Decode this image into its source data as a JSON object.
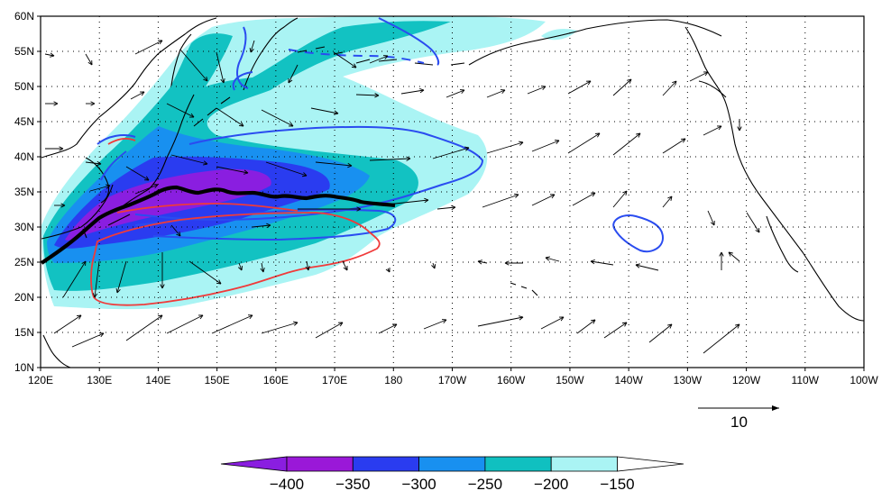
{
  "map": {
    "lat_labels": [
      "60N",
      "55N",
      "50N",
      "45N",
      "40N",
      "35N",
      "30N",
      "25N",
      "20N",
      "15N",
      "10N"
    ],
    "lon_labels": [
      "120E",
      "130E",
      "140E",
      "150E",
      "160E",
      "170E",
      "180",
      "170W",
      "160W",
      "150W",
      "140W",
      "130W",
      "120W",
      "110W",
      "100W"
    ],
    "colors": {
      "land_outline": "#000000",
      "grid": "#000000",
      "blue_contour": "#2a4cf0",
      "red_contour": "#f03a3a",
      "jet_axis": "#000000"
    }
  },
  "reference_vector": {
    "label": "10"
  },
  "colorbar": {
    "labels": [
      "−400",
      "−350",
      "−300",
      "−250",
      "−200",
      "−150"
    ],
    "colors": [
      "#8a1ee0",
      "#9a18d8",
      "#2a3cf0",
      "#1890f0",
      "#10c0c0",
      "#aaf4f4",
      "#ffffff"
    ]
  }
}
